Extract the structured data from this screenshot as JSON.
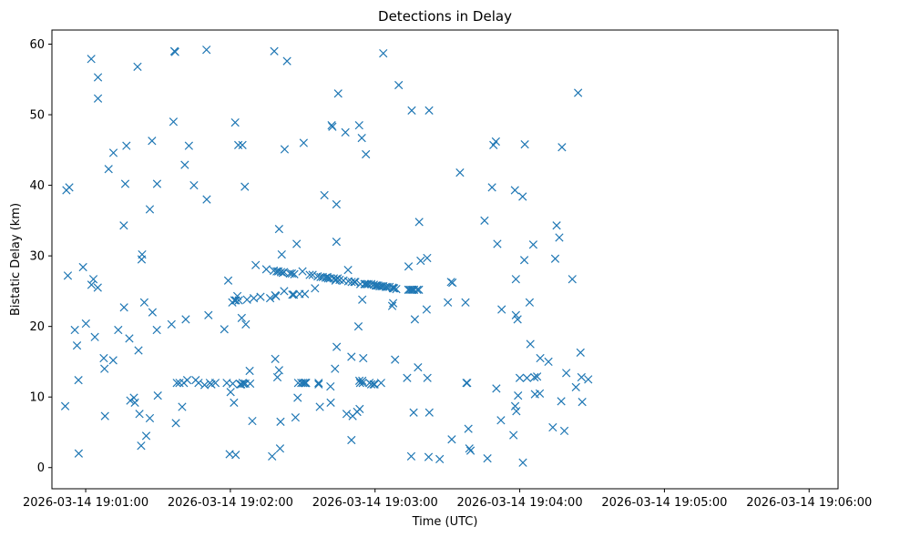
{
  "chart_data": {
    "type": "scatter",
    "title": "Detections in Delay",
    "xlabel": "Time (UTC)",
    "ylabel": "Bistatic Delay (km)",
    "marker": "x",
    "color": "#1f77b4",
    "x_unit": "seconds after 2026-03-14 19:00:00",
    "xlim": [
      46,
      372
    ],
    "ylim": [
      -3,
      62
    ],
    "x_ticks": [
      {
        "value": 60,
        "label": "2026-03-14 19:01:00"
      },
      {
        "value": 120,
        "label": "2026-03-14 19:02:00"
      },
      {
        "value": 180,
        "label": "2026-03-14 19:03:00"
      },
      {
        "value": 240,
        "label": "2026-03-14 19:04:00"
      },
      {
        "value": 300,
        "label": "2026-03-14 19:05:00"
      },
      {
        "value": 360,
        "label": "2026-03-14 19:06:00"
      }
    ],
    "y_ticks": [
      {
        "value": 0,
        "label": "0"
      },
      {
        "value": 10,
        "label": "10"
      },
      {
        "value": 20,
        "label": "20"
      },
      {
        "value": 30,
        "label": "30"
      },
      {
        "value": 40,
        "label": "40"
      },
      {
        "value": 50,
        "label": "50"
      },
      {
        "value": 60,
        "label": "60"
      }
    ],
    "points": [
      [
        51.5,
        8.7
      ],
      [
        52.0,
        39.3
      ],
      [
        52.6,
        27.2
      ],
      [
        53.2,
        39.7
      ],
      [
        55.5,
        19.5
      ],
      [
        56.4,
        17.3
      ],
      [
        57.0,
        12.4
      ],
      [
        57.1,
        2.0
      ],
      [
        58.9,
        28.4
      ],
      [
        60.1,
        20.4
      ],
      [
        62.3,
        57.9
      ],
      [
        62.4,
        25.9
      ],
      [
        63.2,
        26.7
      ],
      [
        63.8,
        18.5
      ],
      [
        65.0,
        25.5
      ],
      [
        65.1,
        55.3
      ],
      [
        65.1,
        52.3
      ],
      [
        67.5,
        15.5
      ],
      [
        67.8,
        14.0
      ],
      [
        68.0,
        7.3
      ],
      [
        69.5,
        42.3
      ],
      [
        71.4,
        15.2
      ],
      [
        71.5,
        44.6
      ],
      [
        73.5,
        19.5
      ],
      [
        75.9,
        22.7
      ],
      [
        75.8,
        34.3
      ],
      [
        76.4,
        40.2
      ],
      [
        76.9,
        45.6
      ],
      [
        78.1,
        18.3
      ],
      [
        78.5,
        9.5
      ],
      [
        80.0,
        9.9
      ],
      [
        80.4,
        9.2
      ],
      [
        81.5,
        56.8
      ],
      [
        81.9,
        16.6
      ],
      [
        82.3,
        7.6
      ],
      [
        83.0,
        3.1
      ],
      [
        83.2,
        29.5
      ],
      [
        83.4,
        30.2
      ],
      [
        84.3,
        23.4
      ],
      [
        85.1,
        4.5
      ],
      [
        86.6,
        7.0
      ],
      [
        86.6,
        36.6
      ],
      [
        87.5,
        46.3
      ],
      [
        87.7,
        22.0
      ],
      [
        89.6,
        40.2
      ],
      [
        89.5,
        19.5
      ],
      [
        89.9,
        10.2
      ],
      [
        95.6,
        20.3
      ],
      [
        96.4,
        49.0
      ],
      [
        96.8,
        59.0
      ],
      [
        97.1,
        58.9
      ],
      [
        97.4,
        6.3
      ],
      [
        97.8,
        12.0
      ],
      [
        98.9,
        12.0
      ],
      [
        100.0,
        8.6
      ],
      [
        100.7,
        12.0
      ],
      [
        101.1,
        42.9
      ],
      [
        101.5,
        21.0
      ],
      [
        102.1,
        12.4
      ],
      [
        102.8,
        45.6
      ],
      [
        104.9,
        40.0
      ],
      [
        105.6,
        12.4
      ],
      [
        106.8,
        12.0
      ],
      [
        109.3,
        11.7
      ],
      [
        110.2,
        38.0
      ],
      [
        110.1,
        59.2
      ],
      [
        110.9,
        21.6
      ],
      [
        111.5,
        12.0
      ],
      [
        112.1,
        11.8
      ],
      [
        113.8,
        12.0
      ],
      [
        117.5,
        19.6
      ],
      [
        118.5,
        12.0
      ],
      [
        119.1,
        26.5
      ],
      [
        119.7,
        1.9
      ],
      [
        120.1,
        10.7
      ],
      [
        120.8,
        23.4
      ],
      [
        121.0,
        11.9
      ],
      [
        121.5,
        9.2
      ],
      [
        121.7,
        23.7
      ],
      [
        122.2,
        1.8
      ],
      [
        122.0,
        48.9
      ],
      [
        122.3,
        23.7
      ],
      [
        122.9,
        24.3
      ],
      [
        123.5,
        23.7
      ],
      [
        123.3,
        45.7
      ],
      [
        124.1,
        11.8
      ],
      [
        124.5,
        11.8
      ],
      [
        124.7,
        21.2
      ],
      [
        125.0,
        45.7
      ],
      [
        125.1,
        12.0
      ],
      [
        125.5,
        11.9
      ],
      [
        126.0,
        39.8
      ],
      [
        126.2,
        11.9
      ],
      [
        126.4,
        20.3
      ],
      [
        126.9,
        23.8
      ],
      [
        128.0,
        13.7
      ],
      [
        128.2,
        11.9
      ],
      [
        129.1,
        6.6
      ],
      [
        129.7,
        24.0
      ],
      [
        130.5,
        28.7
      ],
      [
        132.5,
        24.2
      ],
      [
        134.9,
        28.1
      ],
      [
        136.5,
        24.0
      ],
      [
        137.3,
        1.6
      ],
      [
        138.0,
        27.9
      ],
      [
        138.2,
        59.0
      ],
      [
        138.6,
        24.4
      ],
      [
        138.6,
        15.4
      ],
      [
        138.9,
        24.3
      ],
      [
        139.2,
        27.8
      ],
      [
        139.5,
        12.8
      ],
      [
        139.9,
        27.8
      ],
      [
        140.2,
        33.8
      ],
      [
        140.2,
        13.8
      ],
      [
        140.6,
        2.7
      ],
      [
        140.8,
        6.5
      ],
      [
        141.0,
        27.7
      ],
      [
        141.3,
        30.2
      ],
      [
        141.7,
        27.6
      ],
      [
        142.3,
        25.0
      ],
      [
        142.3,
        27.7
      ],
      [
        142.5,
        45.1
      ],
      [
        143.5,
        57.6
      ],
      [
        144.7,
        27.5
      ],
      [
        145.5,
        27.5
      ],
      [
        145.7,
        24.5
      ],
      [
        146.3,
        24.5
      ],
      [
        146.5,
        27.4
      ],
      [
        147.0,
        7.1
      ],
      [
        147.5,
        31.7
      ],
      [
        147.9,
        9.9
      ],
      [
        148.1,
        12.0
      ],
      [
        148.7,
        24.6
      ],
      [
        149.4,
        12.0
      ],
      [
        149.9,
        27.8
      ],
      [
        150.1,
        12.0
      ],
      [
        150.4,
        46.0
      ],
      [
        150.8,
        12.0
      ],
      [
        150.9,
        24.6
      ],
      [
        151.2,
        12.0
      ],
      [
        151.4,
        12.0
      ],
      [
        152.9,
        27.3
      ],
      [
        154.1,
        27.3
      ],
      [
        155.1,
        25.4
      ],
      [
        156.2,
        27.1
      ],
      [
        156.6,
        12.0
      ],
      [
        156.6,
        11.8
      ],
      [
        157.1,
        8.6
      ],
      [
        157.4,
        27.0
      ],
      [
        158.3,
        27.0
      ],
      [
        159.0,
        38.6
      ],
      [
        159.5,
        26.9
      ],
      [
        160.2,
        27.0
      ],
      [
        160.5,
        26.8
      ],
      [
        161.3,
        26.8
      ],
      [
        161.6,
        9.2
      ],
      [
        161.5,
        11.5
      ],
      [
        162.0,
        48.5
      ],
      [
        162.3,
        48.3
      ],
      [
        162.9,
        26.8
      ],
      [
        163.4,
        14.0
      ],
      [
        163.6,
        26.5
      ],
      [
        163.8,
        26.7
      ],
      [
        164.0,
        37.3
      ],
      [
        164.0,
        32.0
      ],
      [
        164.1,
        17.1
      ],
      [
        164.5,
        26.8
      ],
      [
        164.7,
        53.0
      ],
      [
        165.3,
        26.6
      ],
      [
        166.9,
        26.5
      ],
      [
        167.7,
        47.5
      ],
      [
        168.2,
        7.6
      ],
      [
        168.8,
        28.0
      ],
      [
        168.9,
        26.4
      ],
      [
        170.2,
        15.7
      ],
      [
        170.2,
        3.9
      ],
      [
        170.3,
        26.3
      ],
      [
        170.7,
        7.3
      ],
      [
        171.4,
        26.3
      ],
      [
        171.8,
        26.3
      ],
      [
        172.6,
        7.9
      ],
      [
        173.1,
        20.0
      ],
      [
        173.4,
        48.5
      ],
      [
        173.5,
        12.3
      ],
      [
        173.6,
        8.3
      ],
      [
        173.8,
        12.0
      ],
      [
        173.9,
        26.0
      ],
      [
        174.5,
        46.7
      ],
      [
        174.7,
        12.3
      ],
      [
        174.7,
        23.8
      ],
      [
        174.9,
        12.0
      ],
      [
        175.1,
        15.5
      ],
      [
        175.6,
        26.0
      ],
      [
        175.9,
        26.0
      ],
      [
        176.2,
        44.4
      ],
      [
        176.6,
        26.0
      ],
      [
        177.3,
        26.0
      ],
      [
        177.7,
        12.0
      ],
      [
        178.4,
        26.0
      ],
      [
        178.4,
        11.8
      ],
      [
        179.4,
        11.8
      ],
      [
        179.5,
        25.9
      ],
      [
        179.8,
        11.8
      ],
      [
        180.3,
        25.8
      ],
      [
        180.7,
        25.8
      ],
      [
        181.3,
        25.8
      ],
      [
        181.9,
        25.7
      ],
      [
        182.5,
        12.0
      ],
      [
        182.7,
        25.7
      ],
      [
        183.4,
        58.7
      ],
      [
        183.4,
        25.7
      ],
      [
        184.4,
        25.6
      ],
      [
        185.1,
        25.6
      ],
      [
        186.0,
        25.6
      ],
      [
        187.1,
        22.9
      ],
      [
        187.3,
        25.5
      ],
      [
        187.5,
        23.3
      ],
      [
        187.5,
        25.4
      ],
      [
        187.9,
        25.4
      ],
      [
        188.3,
        15.3
      ],
      [
        188.8,
        25.3
      ],
      [
        189.8,
        54.2
      ],
      [
        193.3,
        12.7
      ],
      [
        193.8,
        25.2
      ],
      [
        193.9,
        28.5
      ],
      [
        194.4,
        25.2
      ],
      [
        195.0,
        1.6
      ],
      [
        195.1,
        25.2
      ],
      [
        195.2,
        50.6
      ],
      [
        195.6,
        25.2
      ],
      [
        196.0,
        7.8
      ],
      [
        196.2,
        25.2
      ],
      [
        196.5,
        21.0
      ],
      [
        197.5,
        25.2
      ],
      [
        197.8,
        14.2
      ],
      [
        198.2,
        25.2
      ],
      [
        198.3,
        34.8
      ],
      [
        198.9,
        29.3
      ],
      [
        201.4,
        22.4
      ],
      [
        201.6,
        29.7
      ],
      [
        201.7,
        12.7
      ],
      [
        202.2,
        1.5
      ],
      [
        202.4,
        50.6
      ],
      [
        202.5,
        7.8
      ],
      [
        206.8,
        1.2
      ],
      [
        210.2,
        23.4
      ],
      [
        211.5,
        26.3
      ],
      [
        211.8,
        4.0
      ],
      [
        212.1,
        26.2
      ],
      [
        215.2,
        41.8
      ],
      [
        217.5,
        23.4
      ],
      [
        217.9,
        12.0
      ],
      [
        218.2,
        12.0
      ],
      [
        218.7,
        5.5
      ],
      [
        219.1,
        2.7
      ],
      [
        219.6,
        2.4
      ],
      [
        225.4,
        35.0
      ],
      [
        226.6,
        1.3
      ],
      [
        228.5,
        39.7
      ],
      [
        229.1,
        45.7
      ],
      [
        230.1,
        46.2
      ],
      [
        230.3,
        11.2
      ],
      [
        230.7,
        31.7
      ],
      [
        232.2,
        6.7
      ],
      [
        232.5,
        22.4
      ],
      [
        237.4,
        4.6
      ],
      [
        238.0,
        39.3
      ],
      [
        238.1,
        8.7
      ],
      [
        238.4,
        26.7
      ],
      [
        238.4,
        21.6
      ],
      [
        238.6,
        8.0
      ],
      [
        239.3,
        10.2
      ],
      [
        239.1,
        21.0
      ],
      [
        240.0,
        12.7
      ],
      [
        241.2,
        38.4
      ],
      [
        241.3,
        0.7
      ],
      [
        241.9,
        29.4
      ],
      [
        242.1,
        45.8
      ],
      [
        243.0,
        12.7
      ],
      [
        244.1,
        23.4
      ],
      [
        244.4,
        17.5
      ],
      [
        245.6,
        31.6
      ],
      [
        246.1,
        12.8
      ],
      [
        246.3,
        10.4
      ],
      [
        247.2,
        12.9
      ],
      [
        248.3,
        10.5
      ],
      [
        248.5,
        15.5
      ],
      [
        251.9,
        15.0
      ],
      [
        253.7,
        5.7
      ],
      [
        254.7,
        29.6
      ],
      [
        255.3,
        34.3
      ],
      [
        256.4,
        32.6
      ],
      [
        257.2,
        9.4
      ],
      [
        257.5,
        45.4
      ],
      [
        258.5,
        5.2
      ],
      [
        259.3,
        13.4
      ],
      [
        261.8,
        26.7
      ],
      [
        263.3,
        11.4
      ],
      [
        264.2,
        53.1
      ],
      [
        265.2,
        16.3
      ],
      [
        265.6,
        12.8
      ],
      [
        265.9,
        9.3
      ],
      [
        268.4,
        12.5
      ]
    ]
  }
}
